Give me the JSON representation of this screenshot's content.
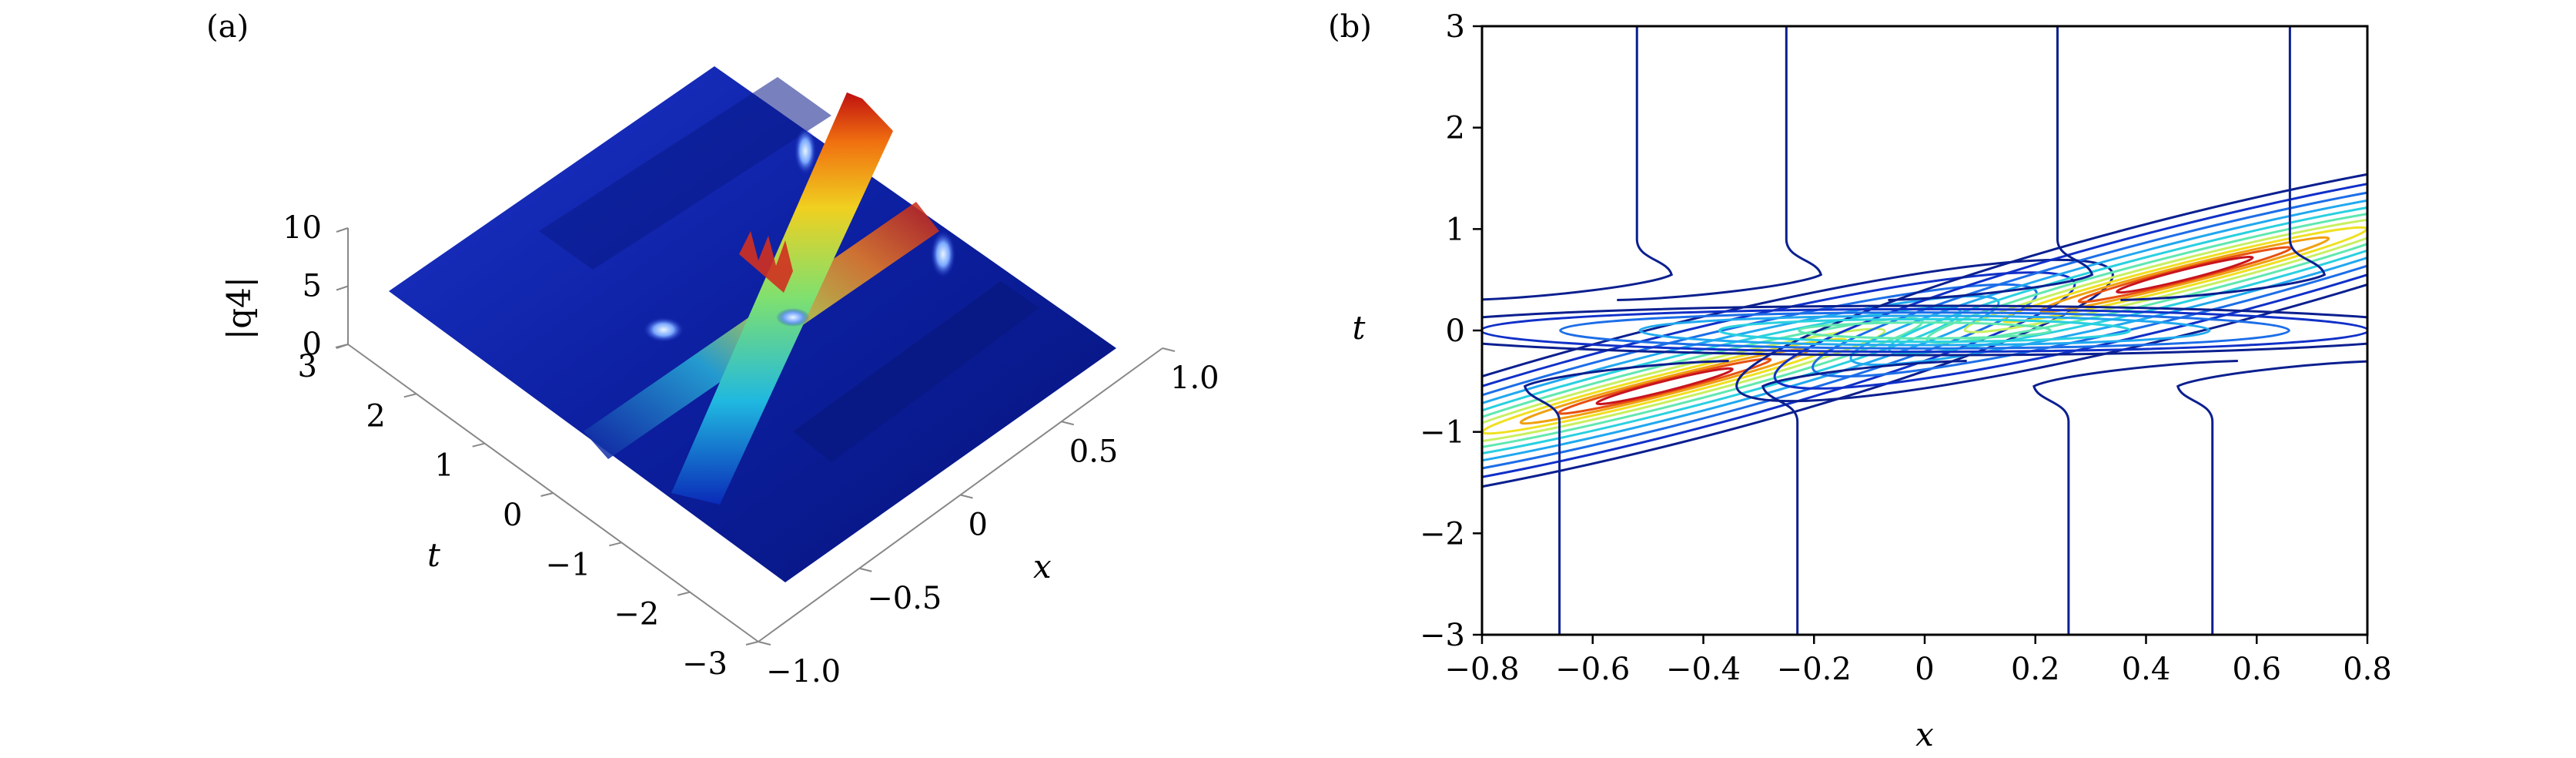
{
  "panels": {
    "a": {
      "label": "(a)"
    },
    "b": {
      "label": "(b)"
    }
  },
  "colors": {
    "surface_base": "#0a1f9c",
    "surface_dark": "#071566",
    "contour_outer": "#0b1f8f",
    "peak_red": "#c8141e",
    "mid_yellow": "#f0e020",
    "mid_cyan": "#2ad0e0"
  },
  "chart_data": [
    {
      "panel": "(a)",
      "type": "surface",
      "zlabel": "|q4|",
      "xlabel": "x",
      "ylabel": "t",
      "xlim": [
        -1.0,
        1.0
      ],
      "ylim": [
        -3,
        3
      ],
      "zlim": [
        0,
        10
      ],
      "x_ticks": [
        "−1.0",
        "−0.5",
        "0",
        "0.5",
        "1.0"
      ],
      "t_ticks": [
        "−3",
        "−2",
        "−1",
        "0",
        "1",
        "2",
        "3"
      ],
      "z_ticks": [
        "0",
        "5",
        "10"
      ],
      "peak_value": 10,
      "background_level": 1,
      "colormap": "jet"
    },
    {
      "panel": "(b)",
      "type": "contour",
      "xlabel": "x",
      "ylabel": "t",
      "xlim": [
        -0.8,
        0.8
      ],
      "ylim": [
        -3,
        3
      ],
      "x_ticks": [
        "−0.8",
        "−0.6",
        "−0.4",
        "−0.2",
        "0",
        "0.2",
        "0.4",
        "0.6",
        "0.8"
      ],
      "y_ticks": [
        "−3",
        "−2",
        "−1",
        "0",
        "1",
        "2",
        "3"
      ],
      "grid": false,
      "colormap": "jet",
      "ridge": {
        "from": [
          -0.8,
          -1.1
        ],
        "to": [
          0.8,
          1.1
        ]
      },
      "vertical_levels_top_x": [
        -0.52,
        -0.25,
        0.24,
        0.66
      ],
      "vertical_levels_bottom_x": [
        -0.66,
        -0.23,
        0.26,
        0.52
      ]
    }
  ]
}
